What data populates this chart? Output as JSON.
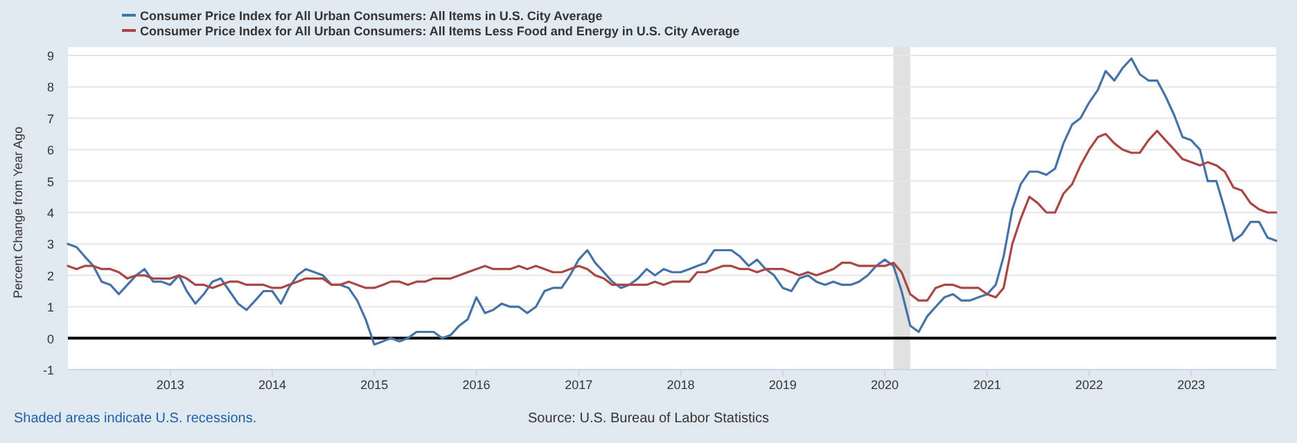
{
  "chart_data": {
    "type": "line",
    "ylabel": "Percent Change from Year Ago",
    "x": [
      "2012-01",
      "2012-02",
      "2012-03",
      "2012-04",
      "2012-05",
      "2012-06",
      "2012-07",
      "2012-08",
      "2012-09",
      "2012-10",
      "2012-11",
      "2012-12",
      "2013-01",
      "2013-02",
      "2013-03",
      "2013-04",
      "2013-05",
      "2013-06",
      "2013-07",
      "2013-08",
      "2013-09",
      "2013-10",
      "2013-11",
      "2013-12",
      "2014-01",
      "2014-02",
      "2014-03",
      "2014-04",
      "2014-05",
      "2014-06",
      "2014-07",
      "2014-08",
      "2014-09",
      "2014-10",
      "2014-11",
      "2014-12",
      "2015-01",
      "2015-02",
      "2015-03",
      "2015-04",
      "2015-05",
      "2015-06",
      "2015-07",
      "2015-08",
      "2015-09",
      "2015-10",
      "2015-11",
      "2015-12",
      "2016-01",
      "2016-02",
      "2016-03",
      "2016-04",
      "2016-05",
      "2016-06",
      "2016-07",
      "2016-08",
      "2016-09",
      "2016-10",
      "2016-11",
      "2016-12",
      "2017-01",
      "2017-02",
      "2017-03",
      "2017-04",
      "2017-05",
      "2017-06",
      "2017-07",
      "2017-08",
      "2017-09",
      "2017-10",
      "2017-11",
      "2017-12",
      "2018-01",
      "2018-02",
      "2018-03",
      "2018-04",
      "2018-05",
      "2018-06",
      "2018-07",
      "2018-08",
      "2018-09",
      "2018-10",
      "2018-11",
      "2018-12",
      "2019-01",
      "2019-02",
      "2019-03",
      "2019-04",
      "2019-05",
      "2019-06",
      "2019-07",
      "2019-08",
      "2019-09",
      "2019-10",
      "2019-11",
      "2019-12",
      "2020-01",
      "2020-02",
      "2020-03",
      "2020-04",
      "2020-05",
      "2020-06",
      "2020-07",
      "2020-08",
      "2020-09",
      "2020-10",
      "2020-11",
      "2020-12",
      "2021-01",
      "2021-02",
      "2021-03",
      "2021-04",
      "2021-05",
      "2021-06",
      "2021-07",
      "2021-08",
      "2021-09",
      "2021-10",
      "2021-11",
      "2021-12",
      "2022-01",
      "2022-02",
      "2022-03",
      "2022-04",
      "2022-05",
      "2022-06",
      "2022-07",
      "2022-08",
      "2022-09",
      "2022-10",
      "2022-11",
      "2022-12",
      "2023-01",
      "2023-02",
      "2023-03",
      "2023-04",
      "2023-05",
      "2023-06",
      "2023-07",
      "2023-08",
      "2023-09",
      "2023-10",
      "2023-11"
    ],
    "series": [
      {
        "name": "Consumer Price Index for All Urban Consumers: All Items in U.S. City Average",
        "color": "#4572a7",
        "values": [
          3.0,
          2.9,
          2.6,
          2.3,
          1.8,
          1.7,
          1.4,
          1.7,
          2.0,
          2.2,
          1.8,
          1.8,
          1.7,
          2.0,
          1.5,
          1.1,
          1.4,
          1.8,
          1.9,
          1.5,
          1.1,
          0.9,
          1.2,
          1.5,
          1.5,
          1.1,
          1.6,
          2.0,
          2.2,
          2.1,
          2.0,
          1.7,
          1.7,
          1.6,
          1.2,
          0.6,
          -0.2,
          -0.1,
          0.0,
          -0.1,
          0.0,
          0.2,
          0.2,
          0.2,
          0.0,
          0.1,
          0.4,
          0.6,
          1.3,
          0.8,
          0.9,
          1.1,
          1.0,
          1.0,
          0.8,
          1.0,
          1.5,
          1.6,
          1.6,
          2.0,
          2.5,
          2.8,
          2.4,
          2.1,
          1.8,
          1.6,
          1.7,
          1.9,
          2.2,
          2.0,
          2.2,
          2.1,
          2.1,
          2.2,
          2.3,
          2.4,
          2.8,
          2.8,
          2.8,
          2.6,
          2.3,
          2.5,
          2.2,
          2.0,
          1.6,
          1.5,
          1.9,
          2.0,
          1.8,
          1.7,
          1.8,
          1.7,
          1.7,
          1.8,
          2.0,
          2.3,
          2.5,
          2.3,
          1.5,
          0.4,
          0.2,
          0.7,
          1.0,
          1.3,
          1.4,
          1.2,
          1.2,
          1.3,
          1.4,
          1.7,
          2.6,
          4.1,
          4.9,
          5.3,
          5.3,
          5.2,
          5.4,
          6.2,
          6.8,
          7.0,
          7.5,
          7.9,
          8.5,
          8.2,
          8.6,
          8.9,
          8.4,
          8.2,
          8.2,
          7.7,
          7.1,
          6.4,
          6.3,
          6.0,
          5.0,
          5.0,
          4.1,
          3.1,
          3.3,
          3.7,
          3.7,
          3.2,
          3.1
        ]
      },
      {
        "name": "Consumer Price Index for All Urban Consumers: All Items Less Food and Energy in U.S. City Average",
        "color": "#aa4643",
        "values": [
          2.3,
          2.2,
          2.3,
          2.3,
          2.2,
          2.2,
          2.1,
          1.9,
          2.0,
          2.0,
          1.9,
          1.9,
          1.9,
          2.0,
          1.9,
          1.7,
          1.7,
          1.6,
          1.7,
          1.8,
          1.8,
          1.7,
          1.7,
          1.7,
          1.6,
          1.6,
          1.7,
          1.8,
          1.9,
          1.9,
          1.9,
          1.7,
          1.7,
          1.8,
          1.7,
          1.6,
          1.6,
          1.7,
          1.8,
          1.8,
          1.7,
          1.8,
          1.8,
          1.9,
          1.9,
          1.9,
          2.0,
          2.1,
          2.2,
          2.3,
          2.2,
          2.2,
          2.2,
          2.3,
          2.2,
          2.3,
          2.2,
          2.1,
          2.1,
          2.2,
          2.3,
          2.2,
          2.0,
          1.9,
          1.7,
          1.7,
          1.7,
          1.7,
          1.7,
          1.8,
          1.7,
          1.8,
          1.8,
          1.8,
          2.1,
          2.1,
          2.2,
          2.3,
          2.3,
          2.2,
          2.2,
          2.1,
          2.2,
          2.2,
          2.2,
          2.1,
          2.0,
          2.1,
          2.0,
          2.1,
          2.2,
          2.4,
          2.4,
          2.3,
          2.3,
          2.3,
          2.3,
          2.4,
          2.1,
          1.4,
          1.2,
          1.2,
          1.6,
          1.7,
          1.7,
          1.6,
          1.6,
          1.6,
          1.4,
          1.3,
          1.6,
          3.0,
          3.8,
          4.5,
          4.3,
          4.0,
          4.0,
          4.6,
          4.9,
          5.5,
          6.0,
          6.4,
          6.5,
          6.2,
          6.0,
          5.9,
          5.9,
          6.3,
          6.6,
          6.3,
          6.0,
          5.7,
          5.6,
          5.5,
          5.6,
          5.5,
          5.3,
          4.8,
          4.7,
          4.3,
          4.1,
          4.0,
          4.0
        ]
      }
    ],
    "xlim": [
      "2012-01",
      "2023-11"
    ],
    "xticks": [
      {
        "value": "2013-01",
        "label": "2013"
      },
      {
        "value": "2014-01",
        "label": "2014"
      },
      {
        "value": "2015-01",
        "label": "2015"
      },
      {
        "value": "2016-01",
        "label": "2016"
      },
      {
        "value": "2017-01",
        "label": "2017"
      },
      {
        "value": "2018-01",
        "label": "2018"
      },
      {
        "value": "2019-01",
        "label": "2019"
      },
      {
        "value": "2020-01",
        "label": "2020"
      },
      {
        "value": "2021-01",
        "label": "2021"
      },
      {
        "value": "2022-01",
        "label": "2022"
      },
      {
        "value": "2023-01",
        "label": "2023"
      }
    ],
    "ylim": [
      -1,
      9
    ],
    "yticks": [
      -1,
      0,
      1,
      2,
      3,
      4,
      5,
      6,
      7,
      8,
      9
    ],
    "grid": "y",
    "legend": "top left",
    "marker": "none",
    "line_style": "solid",
    "ref_lines": [
      {
        "axis": "y",
        "value": 0,
        "color": "#000000"
      }
    ],
    "bands": [
      {
        "axis": "x",
        "from": "2020-02",
        "to": "2020-04",
        "color": "#e1e1e1"
      }
    ],
    "annotations": [
      "Shaded areas indicate U.S. recessions.",
      "Source: U.S. Bureau of Labor Statistics"
    ]
  }
}
